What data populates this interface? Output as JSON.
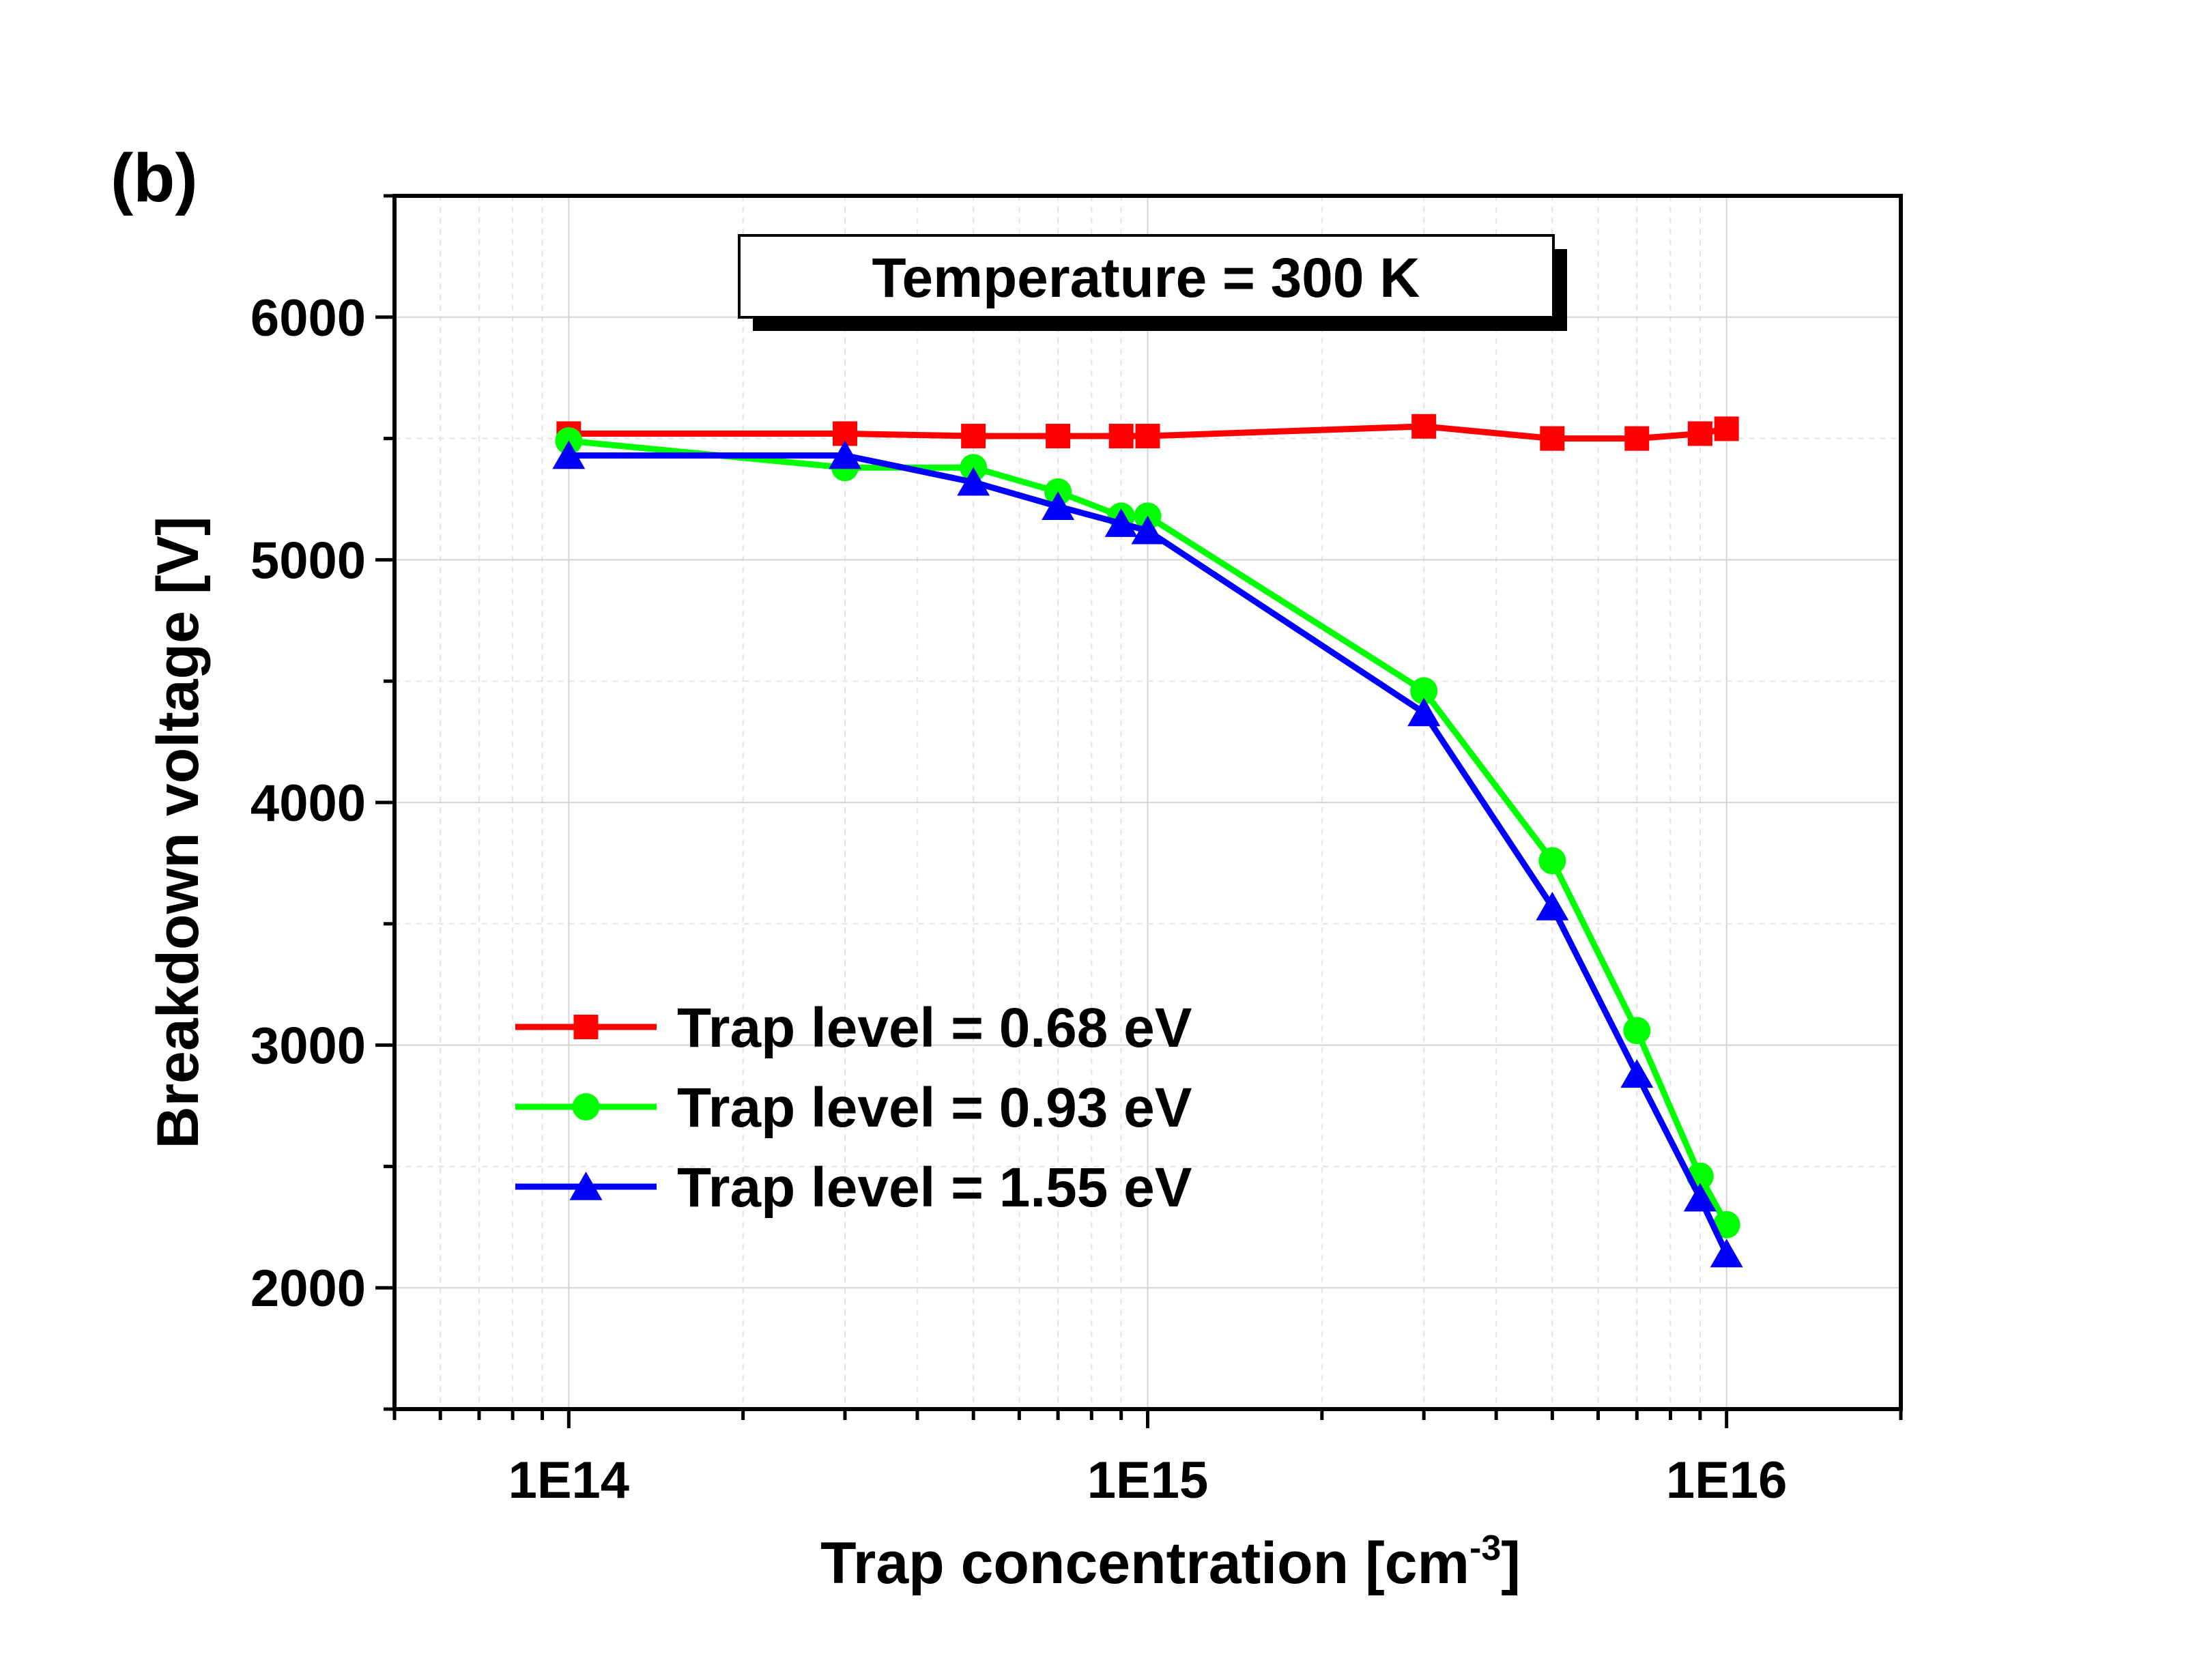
{
  "panel_label": "(b)",
  "chart_data": {
    "type": "line",
    "x_scale": "log",
    "xlim": [
      50000000000000.0,
      2e+16
    ],
    "ylim": [
      1500,
      6500
    ],
    "xlabel": {
      "main": "Trap concentration [cm",
      "sup": "-3",
      "end": "]"
    },
    "ylabel": "Breakdown voltage [V]",
    "x_ticks": [
      {
        "value": 100000000000000.0,
        "label": "1E14"
      },
      {
        "value": 1000000000000000.0,
        "label": "1E15"
      },
      {
        "value": 1e+16,
        "label": "1E16"
      }
    ],
    "y_ticks": [
      {
        "value": 2000,
        "label": "2000"
      },
      {
        "value": 3000,
        "label": "3000"
      },
      {
        "value": 4000,
        "label": "4000"
      },
      {
        "value": 5000,
        "label": "5000"
      },
      {
        "value": 6000,
        "label": "6000"
      }
    ],
    "grid": true,
    "annotation": "Temperature = 300 K",
    "legend_position": "lower-left",
    "x": [
      100000000000000.0,
      300000000000000.0,
      500000000000000.0,
      700000000000000.0,
      900000000000000.0,
      1000000000000000.0,
      3000000000000000.0,
      5000000000000000.0,
      7000000000000000.0,
      9000000000000000.0,
      1e+16
    ],
    "series": [
      {
        "name": "Trap level = 0.68 eV",
        "color": "#ff0000",
        "marker": "square",
        "values": [
          5520,
          5520,
          5510,
          5510,
          5510,
          5510,
          5550,
          5500,
          5500,
          5520,
          5540
        ]
      },
      {
        "name": "Trap level = 0.93 eV",
        "color": "#00ff00",
        "marker": "circle",
        "values": [
          5490,
          5380,
          5380,
          5280,
          5180,
          5180,
          4460,
          3760,
          3060,
          2460,
          2260
        ]
      },
      {
        "name": "Trap level = 1.55 eV",
        "color": "#0000ff",
        "marker": "triangle",
        "values": [
          5430,
          5430,
          5320,
          5220,
          5150,
          5120,
          4370,
          3570,
          2880,
          2370,
          2140
        ]
      }
    ]
  }
}
